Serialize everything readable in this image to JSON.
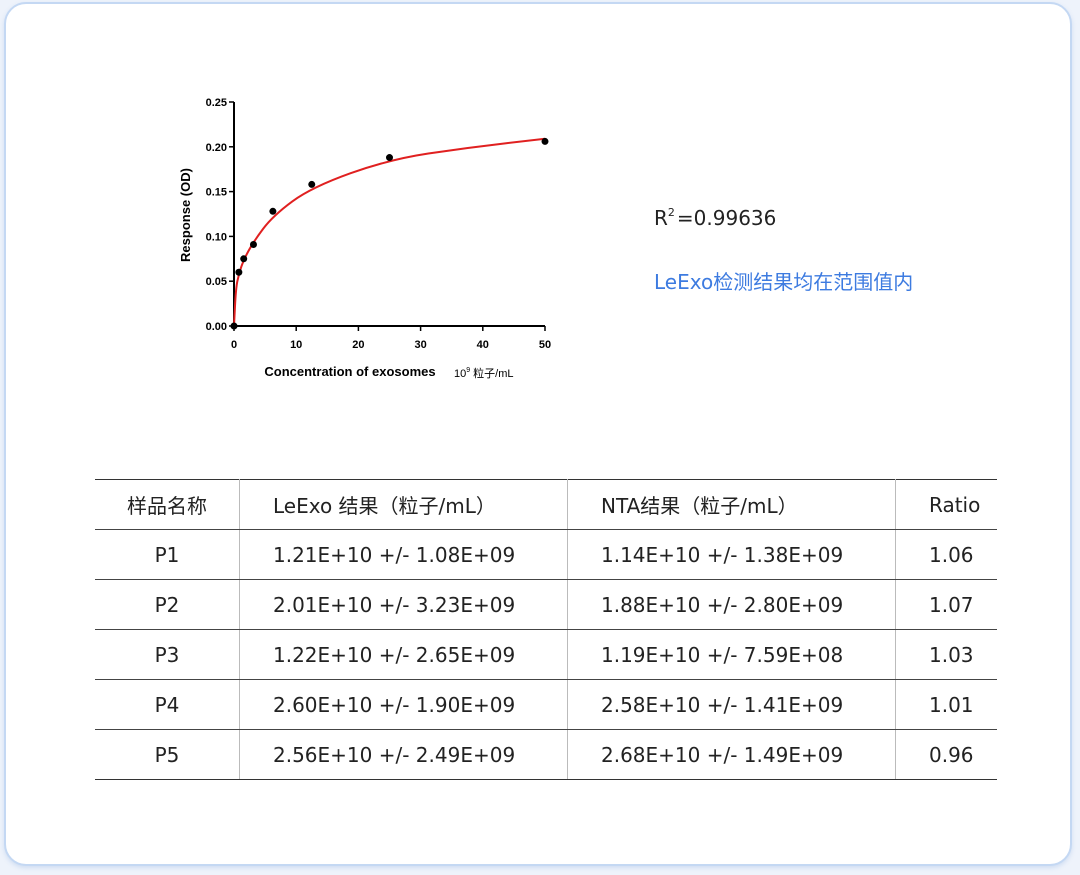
{
  "chart_data": {
    "type": "scatter",
    "xlabel": "Concentration of exosomes",
    "xunit_base": "10",
    "xunit_exp": "9",
    "xunit_rest": "粒子/mL",
    "ylabel": "Response (OD)",
    "xlim": [
      0,
      50
    ],
    "ylim": [
      0,
      0.25
    ],
    "xticks": [
      0,
      10,
      20,
      30,
      40,
      50
    ],
    "yticks": [
      "0.00",
      "0.05",
      "0.10",
      "0.15",
      "0.20",
      "0.25"
    ],
    "grid": false,
    "series": [
      {
        "points": [
          {
            "x": 0,
            "y": 0.0
          },
          {
            "x": 0.78,
            "y": 0.06
          },
          {
            "x": 1.56,
            "y": 0.075
          },
          {
            "x": 3.13,
            "y": 0.091
          },
          {
            "x": 6.25,
            "y": 0.128
          },
          {
            "x": 12.5,
            "y": 0.158
          },
          {
            "x": 25,
            "y": 0.188
          },
          {
            "x": 50,
            "y": 0.206
          }
        ],
        "marker_color": "#000000"
      }
    ],
    "fit_curve": {
      "model_points": [
        {
          "x": 0,
          "y": 0.0
        },
        {
          "x": 0.3,
          "y": 0.042
        },
        {
          "x": 0.78,
          "y": 0.058
        },
        {
          "x": 1.56,
          "y": 0.074
        },
        {
          "x": 3.13,
          "y": 0.094
        },
        {
          "x": 6.25,
          "y": 0.123
        },
        {
          "x": 12.5,
          "y": 0.155
        },
        {
          "x": 25,
          "y": 0.186
        },
        {
          "x": 37.5,
          "y": 0.199
        },
        {
          "x": 50,
          "y": 0.209
        }
      ],
      "color": "#e02020"
    }
  },
  "fit": {
    "r_label": "R",
    "r_sup": "2",
    "r_value": "=0.99636",
    "note": "LeExo检测结果均在范围值内",
    "note_color": "#3d7be0"
  },
  "table": {
    "headers": [
      "样品名称",
      "LeExo 结果（粒子/mL）",
      "NTA结果（粒子/mL）",
      "Ratio"
    ],
    "rows": [
      [
        "P1",
        "1.21E+10 +/- 1.08E+09",
        "1.14E+10 +/- 1.38E+09",
        "1.06"
      ],
      [
        "P2",
        "2.01E+10 +/- 3.23E+09",
        "1.88E+10 +/- 2.80E+09",
        "1.07"
      ],
      [
        "P3",
        "1.22E+10 +/- 2.65E+09",
        "1.19E+10 +/- 7.59E+08",
        "1.03"
      ],
      [
        "P4",
        "2.60E+10 +/- 1.90E+09",
        "2.58E+10 +/- 1.41E+09",
        "1.01"
      ],
      [
        "P5",
        "2.56E+10 +/- 2.49E+09",
        "2.68E+10 +/- 1.49E+09",
        "0.96"
      ]
    ]
  }
}
